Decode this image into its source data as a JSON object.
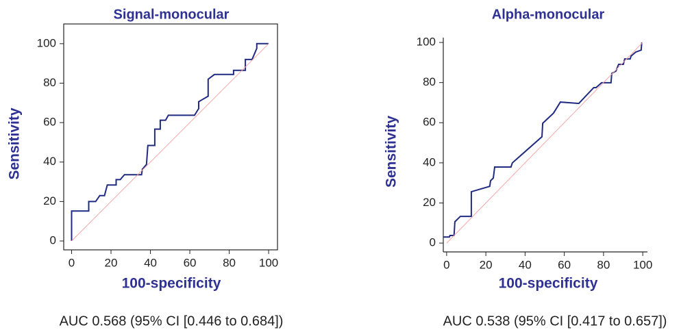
{
  "chart_data": [
    {
      "type": "line",
      "title": "Signal-monocular",
      "xlabel": "100-specificity",
      "ylabel": "Sensitivity",
      "annotation": "AUC 0.568 (95% CI [0.446 to 0.684])",
      "box": true,
      "xlim": [
        -4,
        104.5
      ],
      "ylim": [
        -4.5,
        110
      ],
      "xticks": [
        0,
        20,
        40,
        60,
        80,
        100
      ],
      "yticks": [
        0,
        20,
        40,
        60,
        80,
        100
      ],
      "series": [
        {
          "color": "#1f2a80",
          "x": [
            0,
            0,
            8.7,
            8.7,
            12.2,
            14.3,
            16.7,
            18.1,
            22.6,
            22.6,
            24.7,
            26.8,
            35.5,
            35.9,
            38,
            38.7,
            42.2,
            42.2,
            45,
            45,
            47.7,
            49.1,
            62.4,
            64.5,
            64.5,
            66.2,
            69.3,
            69.3,
            72.5,
            82.2,
            82.2,
            88.2,
            88.2,
            91.6,
            94,
            94,
            100
          ],
          "values": [
            0,
            15.2,
            15.2,
            20,
            20,
            23,
            23,
            28.4,
            28.4,
            31.1,
            31.1,
            33.6,
            33.6,
            36.3,
            38.8,
            48.4,
            48.4,
            56.7,
            56.7,
            61.2,
            61.2,
            63.7,
            63.7,
            67.1,
            70.6,
            71.6,
            73.4,
            82,
            84.4,
            84.4,
            86.5,
            86.5,
            92,
            92,
            97.6,
            100,
            100
          ]
        },
        {
          "color": "#f4a6a6",
          "x": [
            0,
            100
          ],
          "values": [
            0,
            100
          ]
        }
      ]
    },
    {
      "type": "line",
      "title": "Alpha-monocular",
      "xlabel": "100-specificity",
      "ylabel": "Sensitivity",
      "annotation": "AUC 0.538 (95% CI [0.417 to 0.657])",
      "box": false,
      "xlim": [
        -1.7,
        102.4
      ],
      "ylim": [
        -4.4,
        102.4
      ],
      "xticks": [
        0,
        20,
        40,
        60,
        80,
        100
      ],
      "yticks": [
        0,
        20,
        40,
        60,
        80,
        100
      ],
      "series": [
        {
          "color": "#1f2a80",
          "x": [
            -1.7,
            1.4,
            1.7,
            3.8,
            4.2,
            7,
            12.6,
            12.6,
            22,
            22.4,
            23.8,
            24.5,
            32.8,
            33.5,
            48.6,
            49,
            54.5,
            58,
            67.4,
            75,
            76.2,
            79,
            83.8,
            84.2,
            86.3,
            87.7,
            90.1,
            90.8,
            93.6,
            94,
            96.4,
            99.2,
            99.5
          ],
          "values": [
            3,
            3,
            3.8,
            3.8,
            10.6,
            13.3,
            13.3,
            25.6,
            28.3,
            31.1,
            32.4,
            37.9,
            37.9,
            40,
            53,
            59.7,
            64.8,
            70.3,
            69.6,
            77.5,
            77.5,
            79.9,
            79.9,
            84.6,
            85.7,
            89.1,
            89.1,
            91.8,
            91.8,
            93.2,
            95.2,
            96.2,
            100
          ]
        },
        {
          "color": "#f4a6a6",
          "x": [
            0,
            100
          ],
          "values": [
            0,
            100
          ]
        }
      ]
    }
  ]
}
